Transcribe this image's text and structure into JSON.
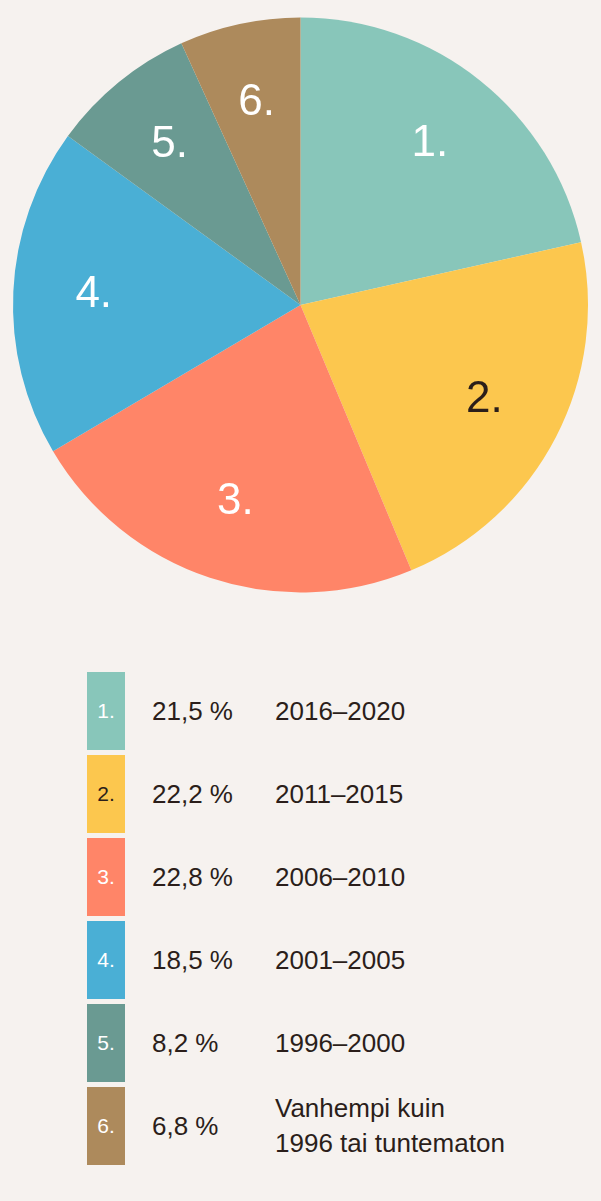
{
  "chart_data": {
    "type": "pie",
    "slice_labels": [
      "1.",
      "2.",
      "3.",
      "4.",
      "5.",
      "6."
    ],
    "categories": [
      "2016–2020",
      "2011–2015",
      "2006–2010",
      "2001–2005",
      "1996–2000",
      "Vanhempi kuin\n1996 tai tuntematon"
    ],
    "values": [
      21.5,
      22.2,
      22.8,
      18.5,
      8.2,
      6.8
    ],
    "value_labels": [
      "21,5 %",
      "22,2 %",
      "22,8 %",
      "18,5 %",
      "8,2 %",
      "6,8 %"
    ],
    "colors": [
      "#88c6ba",
      "#fcc74e",
      "#ff8568",
      "#4aafd5",
      "#6a9a92",
      "#ad8a5c"
    ],
    "legend": "bottom"
  }
}
